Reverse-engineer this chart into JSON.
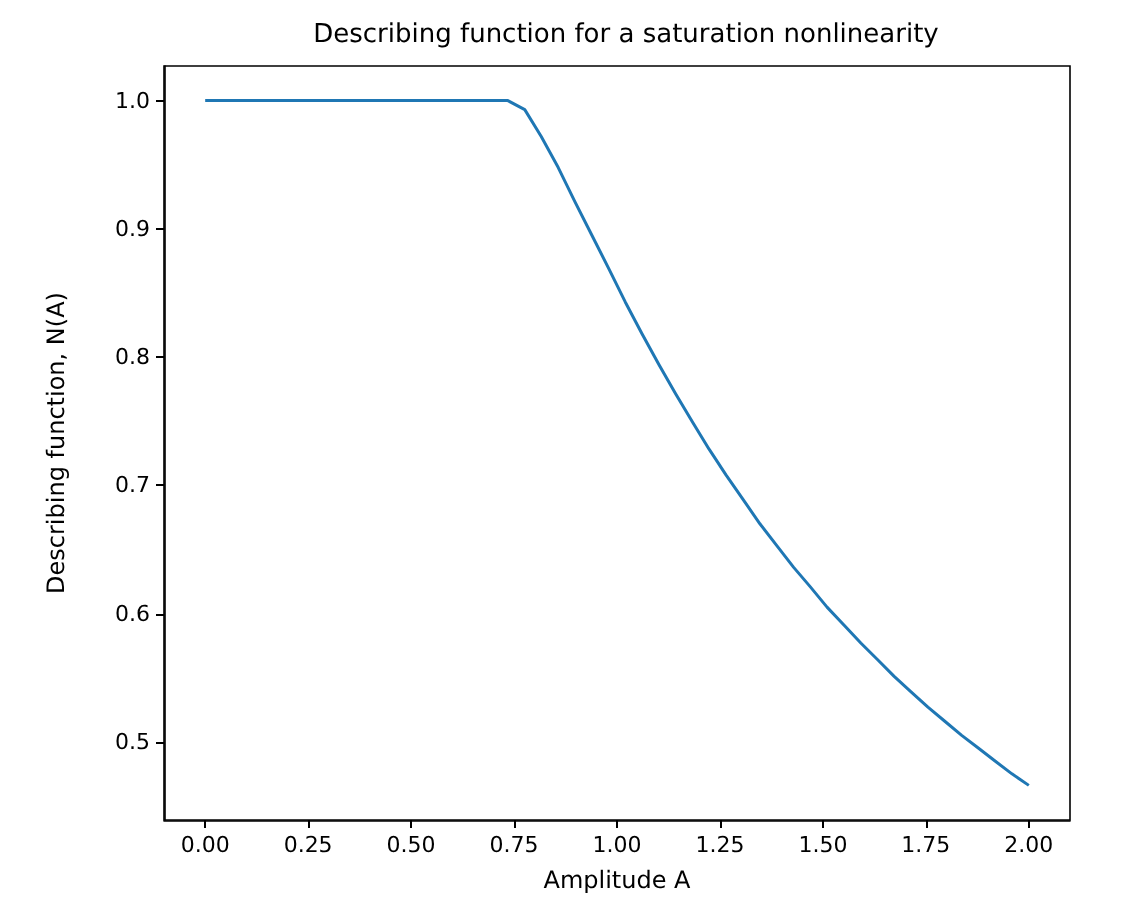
{
  "chart_data": {
    "type": "line",
    "title": "Describing function for a saturation nonlinearity",
    "xlabel": "Amplitude A",
    "ylabel": "Describing function, N(A)",
    "x": [
      0,
      0.735,
      0.776,
      0.816,
      0.857,
      0.898,
      0.939,
      0.98,
      1.02,
      1.061,
      1.102,
      1.143,
      1.184,
      1.224,
      1.265,
      1.306,
      1.347,
      1.388,
      1.429,
      1.469,
      1.51,
      1.551,
      1.592,
      1.633,
      1.673,
      1.714,
      1.755,
      1.796,
      1.837,
      1.878,
      1.918,
      1.959,
      2.0
    ],
    "series": [
      {
        "color": "#1f77b4",
        "values": [
          1.0,
          1.0,
          0.993,
          0.972,
          0.948,
          0.921,
          0.895,
          0.869,
          0.843,
          0.818,
          0.794,
          0.771,
          0.749,
          0.728,
          0.708,
          0.689,
          0.67,
          0.653,
          0.636,
          0.621,
          0.605,
          0.591,
          0.577,
          0.564,
          0.551,
          0.539,
          0.527,
          0.516,
          0.505,
          0.495,
          0.485,
          0.475,
          0.466
        ]
      }
    ],
    "xlim": [
      -0.1,
      2.1
    ],
    "xticks": [
      {
        "value": 0,
        "label": "0.00"
      },
      0.25,
      {
        "value": 0.5,
        "label": "0.50"
      },
      0.75,
      {
        "value": 1,
        "label": "1.00"
      },
      1.25,
      {
        "value": 1.5,
        "label": "1.50"
      },
      1.75,
      {
        "value": 2,
        "label": "2.00"
      }
    ],
    "ylim": [
      0.439,
      1.027
    ],
    "yticks": [
      0.5,
      0.6,
      0.7,
      0.8,
      0.9,
      {
        "value": 1,
        "label": "1.0"
      }
    ],
    "grid": false,
    "marker": "none",
    "line_style": "solid"
  }
}
